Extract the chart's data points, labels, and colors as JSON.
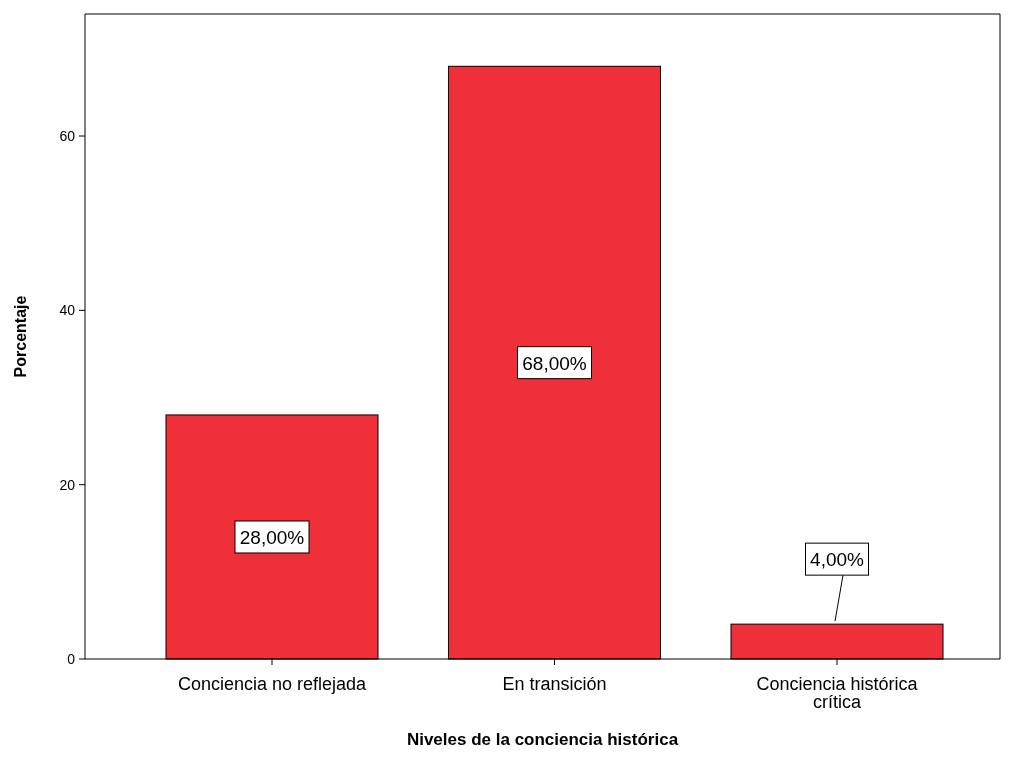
{
  "chart_data": {
    "type": "bar",
    "xlabel": "Niveles de la conciencia histórica",
    "ylabel": "Porcentaje",
    "categories": [
      "Conciencia no reflejada",
      "En transición",
      "Conciencia histórica crítica"
    ],
    "values": [
      28,
      68,
      4
    ],
    "color": "#ef3038",
    "value_labels": [
      "28,00%",
      "68,00%",
      "4,00%"
    ],
    "ylim": [
      0,
      74
    ],
    "yticks": [
      0,
      20,
      40,
      60
    ],
    "grid": false
  }
}
